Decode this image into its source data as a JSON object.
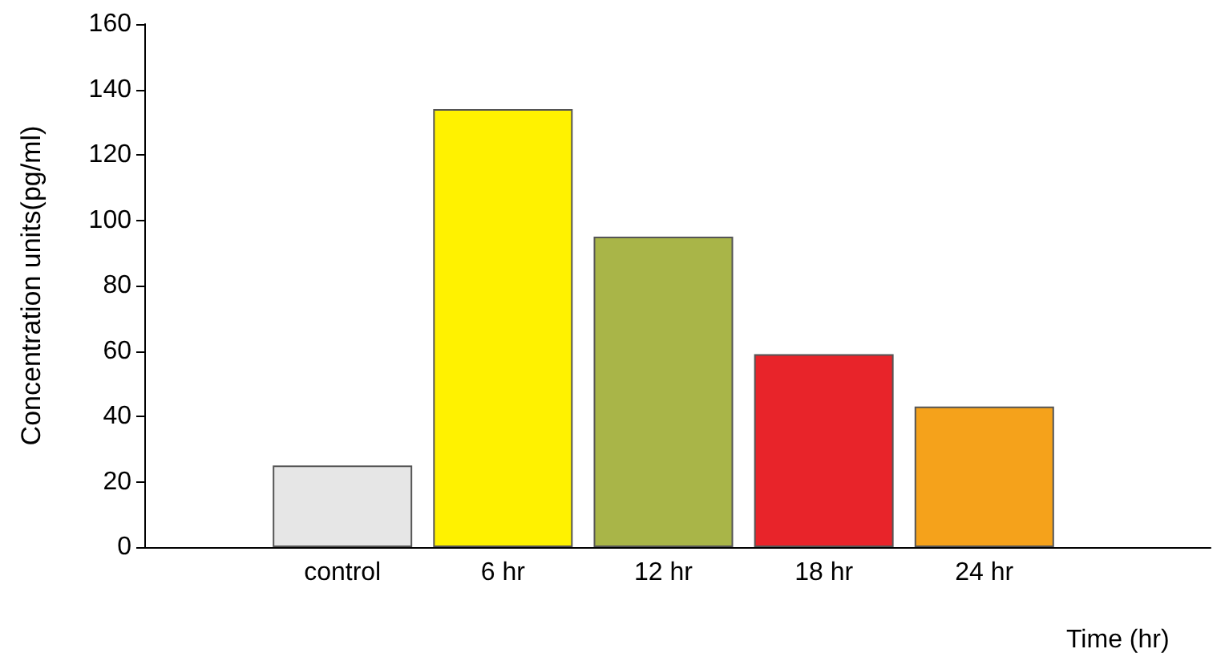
{
  "chart_data": {
    "type": "bar",
    "xlabel": "Time (hr)",
    "ylabel": "Concentration units(pg/ml)",
    "categories": [
      "control",
      "6 hr",
      "12 hr",
      "18 hr",
      "24 hr"
    ],
    "values": [
      25,
      134,
      95,
      59,
      43
    ],
    "colors": [
      "#e6e6e6",
      "#fff200",
      "#a9b548",
      "#e8242a",
      "#f5a21b"
    ],
    "ylim": [
      0,
      160
    ],
    "yticks": [
      0,
      20,
      40,
      60,
      80,
      100,
      120,
      140,
      160
    ]
  }
}
